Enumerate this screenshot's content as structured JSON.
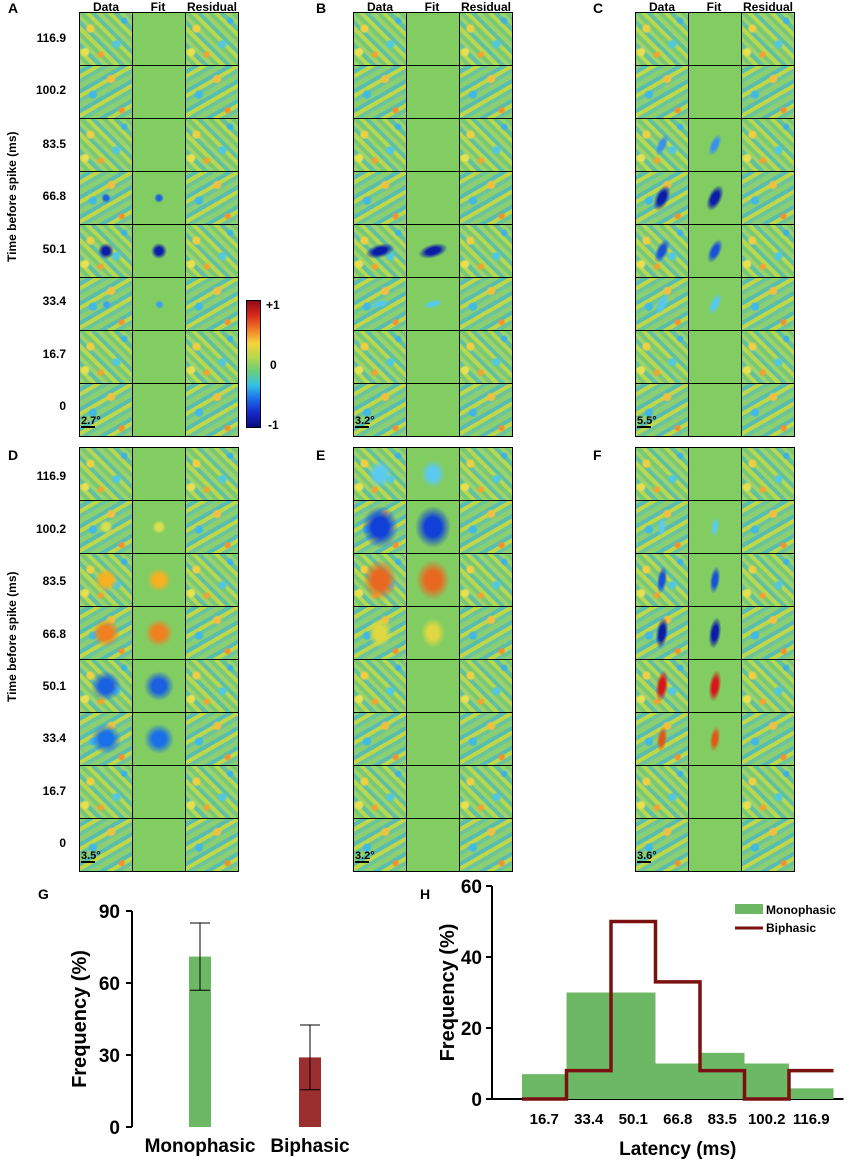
{
  "panels": {
    "labels": [
      "A",
      "B",
      "C",
      "D",
      "E",
      "F",
      "G",
      "H"
    ],
    "column_headers": [
      "Data",
      "Fit",
      "Residual"
    ],
    "time_axis_title": "Time before spike (ms)",
    "time_ticks": [
      "116.9",
      "100.2",
      "83.5",
      "66.8",
      "50.1",
      "33.4",
      "16.7",
      "0"
    ],
    "scale_labels": {
      "A": "2.7°",
      "B": "3.2°",
      "C": "5.5°",
      "D": "3.5°",
      "E": "3.2°",
      "F": "3.6°"
    }
  },
  "colorbar": {
    "ticks": [
      "+1",
      "0",
      "-1"
    ],
    "colors": [
      "#b2182b",
      "#f46d43",
      "#fee08b",
      "#a6d96a",
      "#35c6e6",
      "#1f4bd8",
      "#08087a"
    ]
  },
  "chart_data": [
    {
      "panel": "G",
      "type": "bar",
      "categories": [
        "Monophasic",
        "Biphasic"
      ],
      "values": [
        71,
        29
      ],
      "errors": [
        14,
        13.5
      ],
      "colors": [
        "#6cb865",
        "#9b2f2f"
      ],
      "ylabel": "Frequency (%)",
      "ylim": [
        0,
        90
      ],
      "yticks": [
        "0",
        "30",
        "60",
        "90"
      ]
    },
    {
      "panel": "H",
      "type": "bar",
      "xlabel": "Latency (ms)",
      "ylabel": "Frequency (%)",
      "ylim": [
        0,
        60
      ],
      "yticks": [
        "0",
        "20",
        "40",
        "60"
      ],
      "categories": [
        "16.7",
        "33.4",
        "50.1",
        "66.8",
        "83.5",
        "100.2",
        "116.9"
      ],
      "series": [
        {
          "name": "Monophasic",
          "style": "bars",
          "color": "#6cb865",
          "values": [
            7,
            30,
            30,
            10,
            13,
            10,
            3
          ]
        },
        {
          "name": "Biphasic",
          "style": "step",
          "color": "#7a1010",
          "values": [
            0,
            8,
            50,
            33,
            8,
            0,
            8
          ]
        }
      ],
      "legend": "top-right"
    }
  ]
}
